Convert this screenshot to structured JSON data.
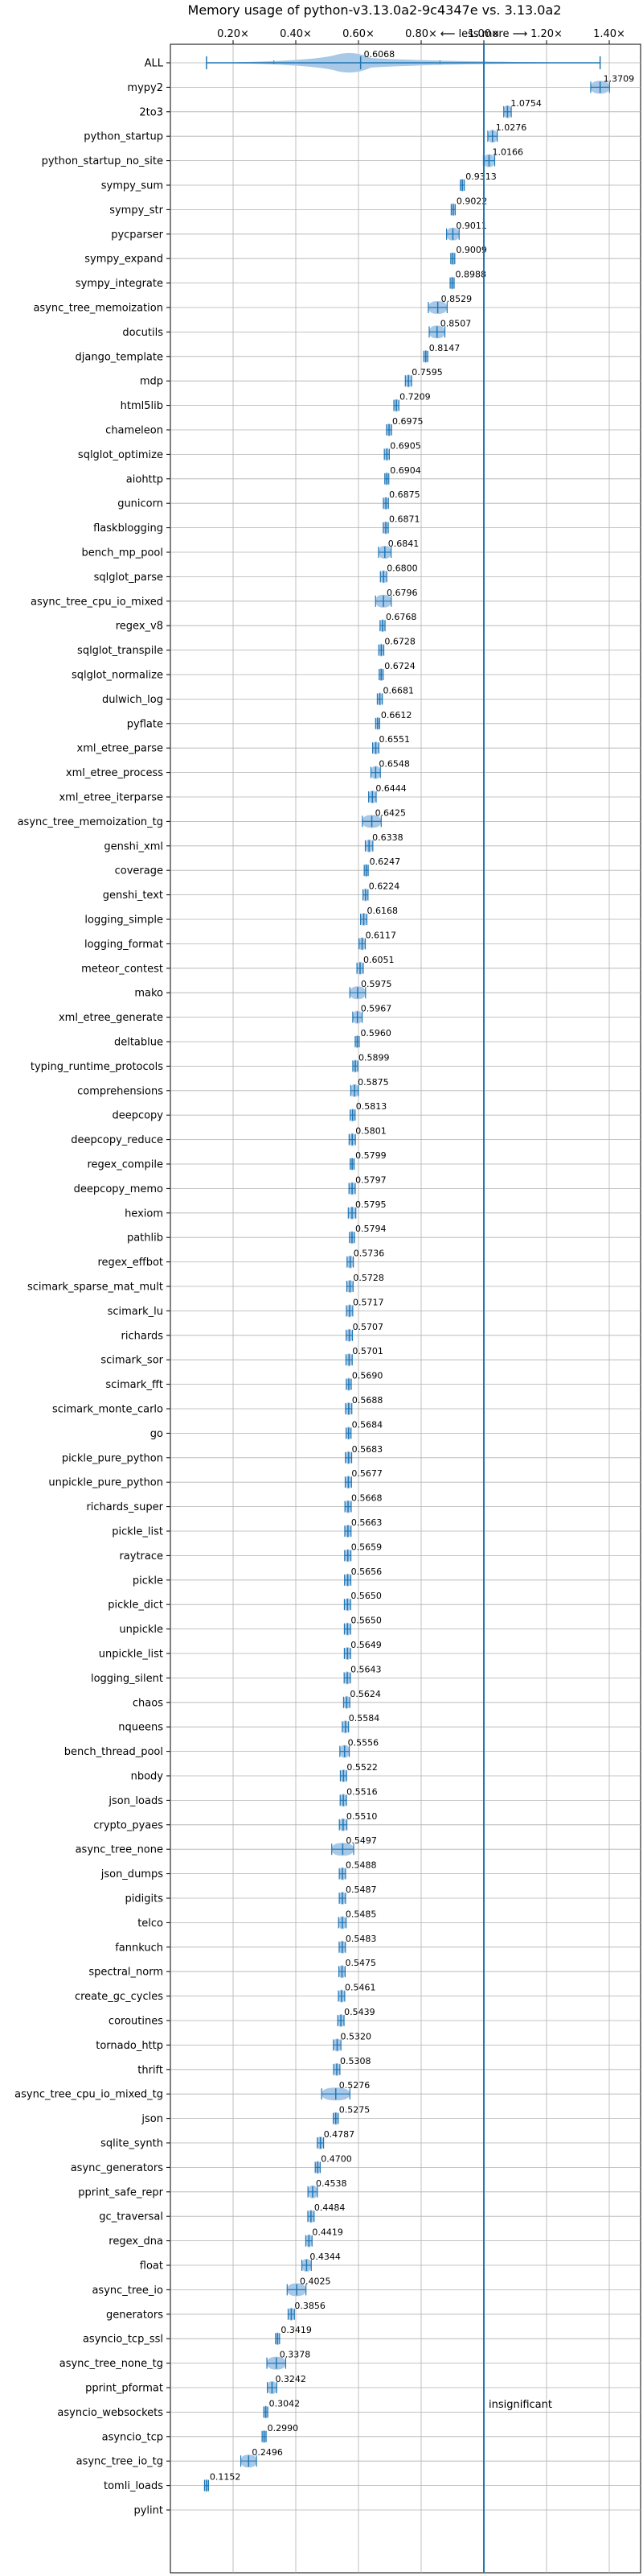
{
  "chart_data": {
    "type": "violin",
    "title": "Memory usage of python-v3.13.0a2-9c4347e vs. 3.13.0a2",
    "xlim": [
      0.0,
      1.5
    ],
    "xticks": [
      0.2,
      0.4,
      0.6,
      0.8,
      1.0,
      1.2,
      1.4
    ],
    "xtick_labels": [
      "0.20×",
      "0.40×",
      "0.60×",
      "0.80×",
      "1.00×",
      "1.20×",
      "1.40×"
    ],
    "reference_line": 1.0,
    "top_annotation": "⟵ less    more ⟶",
    "bottom_annotation": "insignificant",
    "categories": [
      "ALL",
      "mypy2",
      "2to3",
      "python_startup",
      "python_startup_no_site",
      "sympy_sum",
      "sympy_str",
      "pycparser",
      "sympy_expand",
      "sympy_integrate",
      "async_tree_memoization",
      "docutils",
      "django_template",
      "mdp",
      "html5lib",
      "chameleon",
      "sqlglot_optimize",
      "aiohttp",
      "gunicorn",
      "flaskblogging",
      "bench_mp_pool",
      "sqlglot_parse",
      "async_tree_cpu_io_mixed",
      "regex_v8",
      "sqlglot_transpile",
      "sqlglot_normalize",
      "dulwich_log",
      "pyflate",
      "xml_etree_parse",
      "xml_etree_process",
      "xml_etree_iterparse",
      "async_tree_memoization_tg",
      "genshi_xml",
      "coverage",
      "genshi_text",
      "logging_simple",
      "logging_format",
      "meteor_contest",
      "mako",
      "xml_etree_generate",
      "deltablue",
      "typing_runtime_protocols",
      "comprehensions",
      "deepcopy",
      "deepcopy_reduce",
      "regex_compile",
      "deepcopy_memo",
      "hexiom",
      "pathlib",
      "regex_effbot",
      "scimark_sparse_mat_mult",
      "scimark_lu",
      "richards",
      "scimark_sor",
      "scimark_fft",
      "scimark_monte_carlo",
      "go",
      "pickle_pure_python",
      "unpickle_pure_python",
      "richards_super",
      "pickle_list",
      "raytrace",
      "pickle",
      "pickle_dict",
      "unpickle",
      "unpickle_list",
      "logging_silent",
      "chaos",
      "nqueens",
      "bench_thread_pool",
      "nbody",
      "json_loads",
      "crypto_pyaes",
      "async_tree_none",
      "json_dumps",
      "pidigits",
      "telco",
      "fannkuch",
      "spectral_norm",
      "create_gc_cycles",
      "coroutines",
      "tornado_http",
      "thrift",
      "async_tree_cpu_io_mixed_tg",
      "json",
      "sqlite_synth",
      "async_generators",
      "pprint_safe_repr",
      "gc_traversal",
      "regex_dna",
      "float",
      "async_tree_io",
      "generators",
      "asyncio_tcp_ssl",
      "async_tree_none_tg",
      "pprint_pformat",
      "asyncio_websockets",
      "asyncio_tcp",
      "async_tree_io_tg",
      "tomli_loads",
      "pylint"
    ],
    "values": [
      0.6068,
      1.3709,
      1.0754,
      1.0276,
      1.0166,
      0.9313,
      0.9022,
      0.9011,
      0.9009,
      0.8988,
      0.8529,
      0.8507,
      0.8147,
      0.7595,
      0.7209,
      0.6975,
      0.6905,
      0.6904,
      0.6875,
      0.6871,
      0.6841,
      0.68,
      0.6796,
      0.6768,
      0.6728,
      0.6724,
      0.6681,
      0.6612,
      0.6551,
      0.6548,
      0.6444,
      0.6425,
      0.6338,
      0.6247,
      0.6224,
      0.6168,
      0.6117,
      0.6051,
      0.5975,
      0.5967,
      0.596,
      0.5899,
      0.5875,
      0.5813,
      0.5801,
      0.5799,
      0.5797,
      0.5795,
      0.5794,
      0.5736,
      0.5728,
      0.5717,
      0.5707,
      0.5701,
      0.569,
      0.5688,
      0.5684,
      0.5683,
      0.5677,
      0.5668,
      0.5663,
      0.5659,
      0.5656,
      0.565,
      0.565,
      0.5649,
      0.5643,
      0.5624,
      0.5584,
      0.5556,
      0.5522,
      0.5516,
      0.551,
      0.5497,
      0.5488,
      0.5487,
      0.5485,
      0.5483,
      0.5475,
      0.5461,
      0.5439,
      0.532,
      0.5308,
      0.5276,
      0.5275,
      0.4787,
      0.47,
      0.4538,
      0.4484,
      0.4419,
      0.4344,
      0.4025,
      0.3856,
      0.3419,
      0.3378,
      0.3242,
      0.3042,
      0.299,
      0.2496,
      0.1152,
      null
    ],
    "value_labels": [
      "0.6068",
      "1.3709",
      "1.0754",
      "1.0276",
      "1.0166",
      "0.9313",
      "0.9022",
      "0.9011",
      "0.9009",
      "0.8988",
      "0.8529",
      "0.8507",
      "0.8147",
      "0.7595",
      "0.7209",
      "0.6975",
      "0.6905",
      "0.6904",
      "0.6875",
      "0.6871",
      "0.6841",
      "0.6800",
      "0.6796",
      "0.6768",
      "0.6728",
      "0.6724",
      "0.6681",
      "0.6612",
      "0.6551",
      "0.6548",
      "0.6444",
      "0.6425",
      "0.6338",
      "0.6247",
      "0.6224",
      "0.6168",
      "0.6117",
      "0.6051",
      "0.5975",
      "0.5967",
      "0.5960",
      "0.5899",
      "0.5875",
      "0.5813",
      "0.5801",
      "0.5799",
      "0.5797",
      "0.5795",
      "0.5794",
      "0.5736",
      "0.5728",
      "0.5717",
      "0.5707",
      "0.5701",
      "0.5690",
      "0.5688",
      "0.5684",
      "0.5683",
      "0.5677",
      "0.5668",
      "0.5663",
      "0.5659",
      "0.5656",
      "0.5650",
      "0.5650",
      "0.5649",
      "0.5643",
      "0.5624",
      "0.5584",
      "0.5556",
      "0.5522",
      "0.5516",
      "0.5510",
      "0.5497",
      "0.5488",
      "0.5487",
      "0.5485",
      "0.5483",
      "0.5475",
      "0.5461",
      "0.5439",
      "0.5320",
      "0.5308",
      "0.5276",
      "0.5275",
      "0.4787",
      "0.4700",
      "0.4538",
      "0.4484",
      "0.4419",
      "0.4344",
      "0.4025",
      "0.3856",
      "0.3419",
      "0.3378",
      "0.3242",
      "0.3042",
      "0.2990",
      "0.2496",
      "0.1152",
      ""
    ],
    "spreads": [
      0.08,
      0.03,
      0.012,
      0.015,
      0.018,
      0.004,
      0.006,
      0.02,
      0.005,
      0.004,
      0.03,
      0.025,
      0.005,
      0.01,
      0.008,
      0.008,
      0.008,
      0.006,
      0.008,
      0.008,
      0.02,
      0.01,
      0.025,
      0.008,
      0.008,
      0.006,
      0.008,
      0.006,
      0.01,
      0.015,
      0.012,
      0.03,
      0.012,
      0.006,
      0.008,
      0.01,
      0.01,
      0.01,
      0.025,
      0.015,
      0.006,
      0.008,
      0.012,
      0.008,
      0.01,
      0.006,
      0.01,
      0.012,
      0.008,
      0.01,
      0.01,
      0.01,
      0.01,
      0.01,
      0.008,
      0.01,
      0.008,
      0.01,
      0.01,
      0.01,
      0.01,
      0.01,
      0.01,
      0.01,
      0.01,
      0.01,
      0.01,
      0.01,
      0.01,
      0.015,
      0.01,
      0.01,
      0.012,
      0.035,
      0.01,
      0.01,
      0.012,
      0.01,
      0.01,
      0.01,
      0.01,
      0.012,
      0.01,
      0.045,
      0.008,
      0.01,
      0.008,
      0.015,
      0.01,
      0.01,
      0.015,
      0.03,
      0.01,
      0.004,
      0.03,
      0.015,
      0.004,
      0.004,
      0.025,
      0.006,
      0
    ],
    "colors": {
      "violin_fill": "#a8c8e8",
      "violin_line": "#1f77b4",
      "ref_line": "#1f77b4",
      "grid": "#b0b0b0"
    }
  }
}
